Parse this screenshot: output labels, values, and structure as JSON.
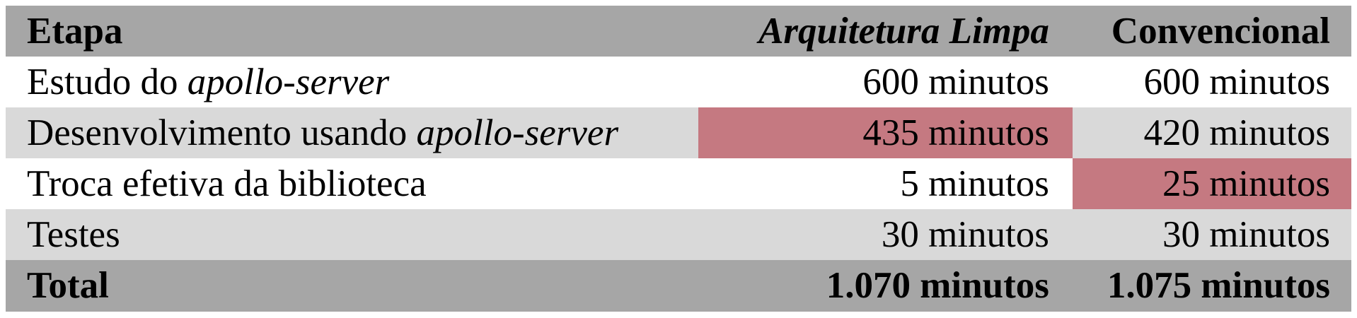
{
  "table": {
    "header": {
      "step": "Etapa",
      "clean": "Arquitetura Limpa",
      "conventional": "Convencional"
    },
    "rows": [
      {
        "step_prefix": "Estudo do ",
        "step_italic": "apollo-server",
        "clean": "600 minutos",
        "conventional": "600 minutos",
        "highlight": "none"
      },
      {
        "step_prefix": "Desenvolvimento usando ",
        "step_italic": "apollo-server",
        "clean": "435 minutos",
        "conventional": "420 minutos",
        "highlight": "clean"
      },
      {
        "step_prefix": "Troca efetiva da biblioteca",
        "step_italic": "",
        "clean": "5 minutos",
        "conventional": "25 minutos",
        "highlight": "conventional"
      },
      {
        "step_prefix": "Testes",
        "step_italic": "",
        "clean": "30 minutos",
        "conventional": "30 minutos",
        "highlight": "none"
      }
    ],
    "total": {
      "label": "Total",
      "clean": "1.070 minutos",
      "conventional": "1.075 minutos"
    },
    "colors": {
      "header_bg": "#a6a6a6",
      "row_alt_bg": "#d9d9d9",
      "highlight_bg": "#c57981"
    }
  }
}
